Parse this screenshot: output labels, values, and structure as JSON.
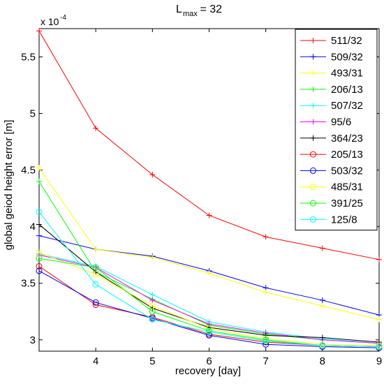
{
  "chart_data": {
    "type": "line",
    "title_main": "L",
    "title_sub": "max",
    "title_rest": " = 32",
    "xlabel": "recovery [day]",
    "ylabel": "global geiod height error [m]",
    "y_exponent_base": "x 10",
    "y_exponent_power": "-4",
    "xlim": [
      3,
      9
    ],
    "ylim": [
      2.9,
      5.75
    ],
    "x_ticks": [
      4,
      5,
      6,
      7,
      8,
      9
    ],
    "x_tick_labels": [
      "4",
      "5",
      "6",
      "7",
      "8",
      "9"
    ],
    "y_ticks": [
      3,
      3.5,
      4,
      4.5,
      5,
      5.5
    ],
    "y_tick_labels": [
      "3",
      "3.5",
      "4",
      "4.5",
      "5",
      "5.5"
    ],
    "legend_position": "top-right",
    "grid": false,
    "x": [
      3,
      4,
      5,
      6,
      7,
      8,
      9
    ],
    "series": [
      {
        "name": "511/32",
        "color": "#ff0000",
        "marker": "plus",
        "values": [
          5.73,
          4.87,
          4.46,
          4.1,
          3.91,
          3.81,
          3.71
        ]
      },
      {
        "name": "509/32",
        "color": "#0000ff",
        "marker": "plus",
        "values": [
          3.92,
          3.8,
          3.74,
          3.61,
          3.46,
          3.35,
          3.22
        ]
      },
      {
        "name": "493/31",
        "color": "#ffff00",
        "marker": "plus",
        "values": [
          4.52,
          3.8,
          3.73,
          3.59,
          3.42,
          3.3,
          3.18
        ]
      },
      {
        "name": "206/13",
        "color": "#00ff00",
        "marker": "plus",
        "values": [
          4.4,
          3.6,
          3.36,
          3.13,
          3.05,
          3.0,
          2.97
        ]
      },
      {
        "name": "507/32",
        "color": "#00ffff",
        "marker": "plus",
        "values": [
          3.76,
          3.65,
          3.4,
          3.16,
          3.07,
          3.01,
          2.97
        ]
      },
      {
        "name": "95/6",
        "color": "#ff00ff",
        "marker": "plus",
        "values": [
          3.75,
          3.64,
          3.35,
          3.14,
          3.06,
          3.0,
          2.97
        ]
      },
      {
        "name": "364/23",
        "color": "#000000",
        "marker": "plus",
        "values": [
          4.02,
          3.6,
          3.28,
          3.11,
          3.04,
          3.02,
          2.98
        ]
      },
      {
        "name": "205/13",
        "color": "#ff0000",
        "marker": "circle",
        "values": [
          3.65,
          3.31,
          3.2,
          3.05,
          2.98,
          2.95,
          2.94
        ]
      },
      {
        "name": "503/32",
        "color": "#0000ff",
        "marker": "circle",
        "values": [
          3.61,
          3.33,
          3.19,
          3.04,
          2.96,
          2.94,
          2.93
        ]
      },
      {
        "name": "485/31",
        "color": "#ffff00",
        "marker": "circle",
        "values": [
          3.77,
          3.58,
          3.3,
          3.1,
          3.01,
          2.96,
          2.95
        ]
      },
      {
        "name": "391/25",
        "color": "#00ff00",
        "marker": "circle",
        "values": [
          3.72,
          3.64,
          3.25,
          3.08,
          3.0,
          2.95,
          2.94
        ]
      },
      {
        "name": "125/8",
        "color": "#00ffff",
        "marker": "circle",
        "values": [
          4.13,
          3.49,
          3.18,
          3.07,
          2.99,
          2.95,
          2.94
        ]
      }
    ]
  }
}
